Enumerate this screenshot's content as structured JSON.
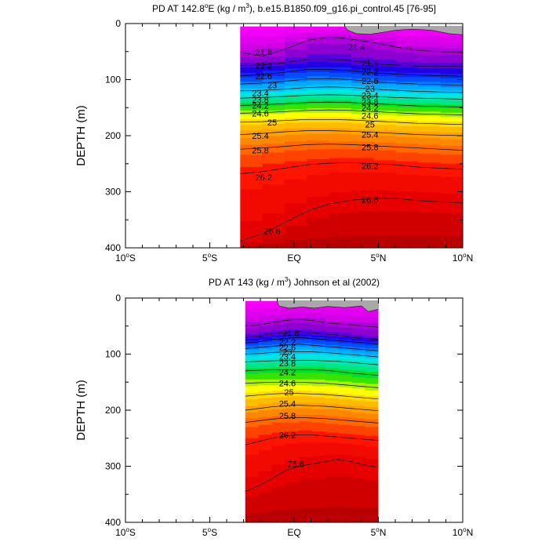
{
  "chart_data": [
    {
      "type": "contour",
      "title": "PD AT 142.8°E (kg / m³), b.e15.B1850.f09_g16.pi_control.45 [76-95]",
      "title_parts": {
        "pre": "PD AT 142.8",
        "deg": "o",
        "post1": "E (kg / m",
        "sup": "3",
        "post2": "), b.e15.B1850.f09_g16.pi_control.45 [76-95]"
      },
      "ylabel": "DEPTH (m)",
      "xlim": [
        -10,
        10
      ],
      "ylim": [
        400,
        0
      ],
      "y_ticks": [
        "0",
        "100",
        "200",
        "300",
        "400"
      ],
      "x_ticks": [
        {
          "value": -10,
          "label": "10",
          "sup": "o",
          "suffix": "S"
        },
        {
          "value": -5,
          "label": "5",
          "sup": "o",
          "suffix": "S"
        },
        {
          "value": 0,
          "label": "EQ",
          "sup": "",
          "suffix": ""
        },
        {
          "value": 5,
          "label": "5",
          "sup": "o",
          "suffix": "N"
        },
        {
          "value": 10,
          "label": "10",
          "sup": "o",
          "suffix": "N"
        }
      ],
      "data_extent": {
        "lat_min": -3.2,
        "lat_max": 10,
        "depth_min": 5,
        "depth_max": 400
      },
      "contour_interval": 0.2,
      "levels_range": [
        21.0,
        27.0
      ],
      "isopycnals": [
        {
          "sigma": 21.8,
          "depth": [
            52,
            58,
            46,
            30,
            24,
            28,
            34,
            42,
            48,
            50,
            52
          ]
        },
        {
          "sigma": 22.2,
          "depth": [
            75,
            74,
            70,
            64,
            64,
            66,
            72,
            74,
            76,
            76,
            76
          ]
        },
        {
          "sigma": 22.6,
          "depth": [
            93,
            91,
            87,
            82,
            82,
            84,
            88,
            90,
            92,
            93,
            94
          ]
        },
        {
          "sigma": 23.0,
          "depth": [
            108,
            106,
            103,
            99,
            98,
            100,
            104,
            106,
            108,
            109,
            110
          ]
        },
        {
          "sigma": 23.4,
          "depth": [
            120,
            119,
            117,
            114,
            113,
            114,
            117,
            119,
            121,
            122,
            123
          ]
        },
        {
          "sigma": 23.8,
          "depth": [
            133,
            132,
            130,
            128,
            127,
            128,
            130,
            132,
            133,
            134,
            135
          ]
        },
        {
          "sigma": 24.2,
          "depth": [
            146,
            145,
            143,
            141,
            140,
            141,
            143,
            145,
            147,
            148,
            149
          ]
        },
        {
          "sigma": 24.6,
          "depth": [
            160,
            159,
            157,
            155,
            154,
            155,
            157,
            159,
            161,
            162,
            163
          ]
        },
        {
          "sigma": 25.0,
          "depth": [
            176,
            175,
            173,
            171,
            171,
            172,
            174,
            176,
            178,
            179,
            180
          ]
        },
        {
          "sigma": 25.4,
          "depth": [
            198,
            196,
            193,
            191,
            191,
            192,
            194,
            196,
            198,
            199,
            200
          ]
        },
        {
          "sigma": 25.8,
          "depth": [
            224,
            222,
            219,
            216,
            215,
            216,
            218,
            220,
            222,
            224,
            226
          ]
        },
        {
          "sigma": 26.2,
          "depth": [
            268,
            264,
            258,
            252,
            249,
            248,
            250,
            252,
            256,
            258,
            260
          ]
        },
        {
          "sigma": 26.6,
          "depth": [
            388,
            375,
            355,
            335,
            322,
            315,
            312,
            312,
            316,
            318,
            320
          ]
        }
      ],
      "labels": [
        {
          "text": "21.8",
          "lat": -1.8,
          "depth": 50
        },
        {
          "text": "21.4",
          "lat": 3.7,
          "depth": 42
        },
        {
          "text": "21.8",
          "lat": 4.5,
          "depth": 70
        },
        {
          "text": "22.2",
          "lat": -1.8,
          "depth": 75
        },
        {
          "text": "22.2",
          "lat": 4.5,
          "depth": 86
        },
        {
          "text": "22.6",
          "lat": -1.8,
          "depth": 94
        },
        {
          "text": "22.6",
          "lat": 4.5,
          "depth": 102
        },
        {
          "text": "23",
          "lat": -1.3,
          "depth": 110
        },
        {
          "text": "23",
          "lat": 4.5,
          "depth": 116
        },
        {
          "text": "23.4",
          "lat": -2.0,
          "depth": 124
        },
        {
          "text": "23.4",
          "lat": 4.5,
          "depth": 128
        },
        {
          "text": "23.8",
          "lat": -2.0,
          "depth": 136
        },
        {
          "text": "23.8",
          "lat": 4.5,
          "depth": 140
        },
        {
          "text": "24.2",
          "lat": -2.0,
          "depth": 146
        },
        {
          "text": "24.2",
          "lat": 4.5,
          "depth": 150
        },
        {
          "text": "24.6",
          "lat": -2.0,
          "depth": 160
        },
        {
          "text": "24.6",
          "lat": 4.5,
          "depth": 164
        },
        {
          "text": "25",
          "lat": -1.3,
          "depth": 176
        },
        {
          "text": "25",
          "lat": 4.5,
          "depth": 180
        },
        {
          "text": "25.4",
          "lat": -2.0,
          "depth": 200
        },
        {
          "text": "25.4",
          "lat": 4.5,
          "depth": 198
        },
        {
          "text": "25.8",
          "lat": -2.0,
          "depth": 226
        },
        {
          "text": "25.8",
          "lat": 4.5,
          "depth": 220
        },
        {
          "text": "26.2",
          "lat": -1.8,
          "depth": 274
        },
        {
          "text": "26.2",
          "lat": 4.5,
          "depth": 254
        },
        {
          "text": "26.6",
          "lat": 4.5,
          "depth": 314
        },
        {
          "text": "26.6",
          "lat": -1.3,
          "depth": 370
        }
      ],
      "land_mask": "top-right gray patch near surface, about 3°N–10°N"
    },
    {
      "type": "contour",
      "title": "PD AT 143 (kg / m³) Johnson et al (2002)",
      "title_parts": {
        "pre": "PD AT 143 (kg / m",
        "sup": "3",
        "post2": ") Johnson et al (2002)"
      },
      "ylabel": "DEPTH (m)",
      "xlim": [
        -10,
        10
      ],
      "ylim": [
        400,
        0
      ],
      "y_ticks": [
        "0",
        "100",
        "200",
        "300",
        "400"
      ],
      "x_ticks": [
        {
          "value": -10,
          "label": "10",
          "sup": "o",
          "suffix": "S"
        },
        {
          "value": -5,
          "label": "5",
          "sup": "o",
          "suffix": "S"
        },
        {
          "value": 0,
          "label": "EQ",
          "sup": "",
          "suffix": ""
        },
        {
          "value": 5,
          "label": "5",
          "sup": "o",
          "suffix": "N"
        },
        {
          "value": 10,
          "label": "10",
          "sup": "o",
          "suffix": "N"
        }
      ],
      "data_extent": {
        "lat_min": -2.9,
        "lat_max": 5,
        "depth_min": 5,
        "depth_max": 400
      },
      "contour_interval": 0.2,
      "levels_range": [
        21.0,
        27.0
      ],
      "isopycnals": [
        {
          "sigma": 21.8,
          "depth": [
            50,
            48,
            44,
            40,
            38,
            40,
            44,
            46,
            48,
            50,
            52
          ]
        },
        {
          "sigma": 22.2,
          "depth": [
            70,
            68,
            64,
            62,
            60,
            62,
            64,
            66,
            70,
            72,
            74
          ]
        },
        {
          "sigma": 22.6,
          "depth": [
            80,
            78,
            74,
            72,
            70,
            72,
            74,
            76,
            78,
            80,
            82
          ]
        },
        {
          "sigma": 23.0,
          "depth": [
            90,
            88,
            86,
            84,
            82,
            84,
            86,
            88,
            90,
            92,
            94
          ]
        },
        {
          "sigma": 23.4,
          "depth": [
            100,
            99,
            97,
            96,
            96,
            96,
            97,
            99,
            101,
            103,
            105
          ]
        },
        {
          "sigma": 23.8,
          "depth": [
            114,
            113,
            112,
            111,
            111,
            111,
            112,
            113,
            115,
            117,
            119
          ]
        },
        {
          "sigma": 24.2,
          "depth": [
            130,
            129,
            128,
            128,
            128,
            128,
            129,
            131,
            134,
            136,
            138
          ]
        },
        {
          "sigma": 24.6,
          "depth": [
            152,
            151,
            150,
            150,
            150,
            151,
            152,
            154,
            156,
            158,
            160
          ]
        },
        {
          "sigma": 25.0,
          "depth": [
            175,
            173,
            171,
            170,
            170,
            171,
            172,
            174,
            176,
            178,
            180
          ]
        },
        {
          "sigma": 25.4,
          "depth": [
            200,
            197,
            194,
            192,
            191,
            192,
            193,
            195,
            197,
            199,
            201
          ]
        },
        {
          "sigma": 25.8,
          "depth": [
            222,
            219,
            216,
            214,
            213,
            214,
            215,
            217,
            219,
            221,
            223
          ]
        },
        {
          "sigma": 26.2,
          "depth": [
            262,
            256,
            250,
            246,
            244,
            244,
            246,
            248,
            250,
            252,
            254
          ]
        },
        {
          "sigma": 26.6,
          "depth": [
            345,
            335,
            322,
            308,
            300,
            296,
            292,
            288,
            292,
            298,
            302
          ]
        }
      ],
      "labels": [
        {
          "text": "21.8",
          "lat": -0.2,
          "depth": 62
        },
        {
          "text": "22.2",
          "lat": -0.4,
          "depth": 78
        },
        {
          "text": "22.6",
          "lat": -0.4,
          "depth": 88
        },
        {
          "text": "23",
          "lat": -0.4,
          "depth": 96
        },
        {
          "text": "23.4",
          "lat": -0.4,
          "depth": 104
        },
        {
          "text": "23.8",
          "lat": -0.4,
          "depth": 116
        },
        {
          "text": "24.2",
          "lat": -0.4,
          "depth": 132
        },
        {
          "text": "24.6",
          "lat": -0.4,
          "depth": 152
        },
        {
          "text": "25",
          "lat": -0.3,
          "depth": 168
        },
        {
          "text": "25.4",
          "lat": -0.4,
          "depth": 188
        },
        {
          "text": "25.8",
          "lat": -0.4,
          "depth": 210
        },
        {
          "text": "26.2",
          "lat": -0.4,
          "depth": 244
        },
        {
          "text": "26.6",
          "lat": 0.1,
          "depth": 296
        }
      ],
      "land_mask": "top gray patch above ~20 m across 0°–5°N"
    }
  ]
}
